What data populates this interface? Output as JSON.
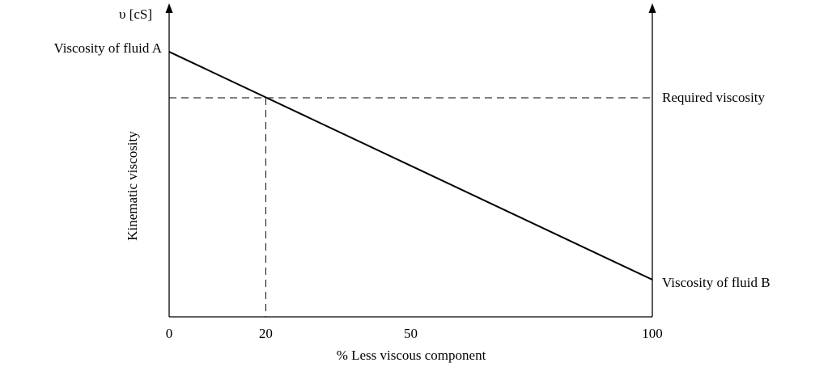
{
  "chart_data": {
    "type": "line",
    "y_unit": "υ [cS]",
    "y_label": "Kinematic viscosity",
    "x_label": "% Less viscous component",
    "x": [
      0,
      100
    ],
    "series": [
      {
        "values": [
          86.3,
          12.1
        ],
        "color": "#000000"
      }
    ],
    "start_label": "Viscosity of fluid A",
    "end_label": "Viscosity of fluid B",
    "reference": {
      "label": "Required viscosity",
      "x": 20,
      "y": 71.3
    },
    "xlim": [
      0,
      100
    ],
    "xticks": [
      0,
      20,
      50,
      100
    ],
    "ylim": [
      0,
      100
    ]
  }
}
